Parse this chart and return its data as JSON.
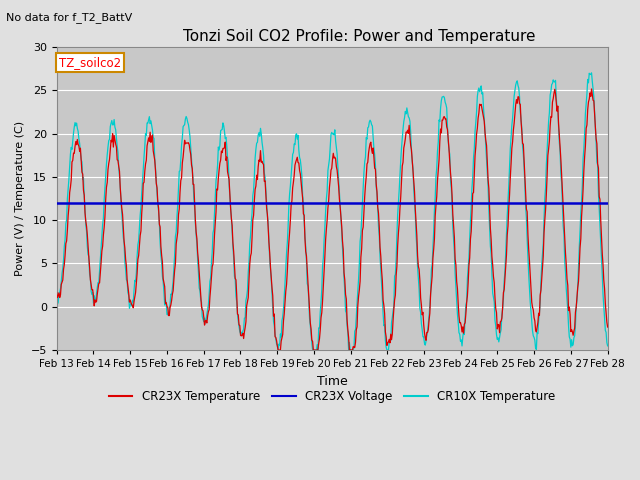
{
  "title": "Tonzi Soil CO2 Profile: Power and Temperature",
  "subtitle": "No data for f_T2_BattV",
  "xlabel": "Time",
  "ylabel": "Power (V) / Temperature (C)",
  "ylim": [
    -5,
    30
  ],
  "yticks": [
    -5,
    0,
    5,
    10,
    15,
    20,
    25,
    30
  ],
  "x_labels": [
    "Feb 13",
    "Feb 14",
    "Feb 15",
    "Feb 16",
    "Feb 17",
    "Feb 18",
    "Feb 19",
    "Feb 20",
    "Feb 21",
    "Feb 22",
    "Feb 23",
    "Feb 24",
    "Feb 25",
    "Feb 26",
    "Feb 27",
    "Feb 28"
  ],
  "voltage_value": 12.0,
  "legend_label_box": "TZ_soilco2",
  "cr23x_temp_color": "#dd0000",
  "cr23x_volt_color": "#0000cc",
  "cr10x_temp_color": "#00cccc",
  "fig_bg_color": "#e0e0e0",
  "plot_bg_color": "#c8c8c8",
  "grid_color": "#ffffff",
  "figwidth": 6.4,
  "figheight": 4.8,
  "dpi": 100
}
